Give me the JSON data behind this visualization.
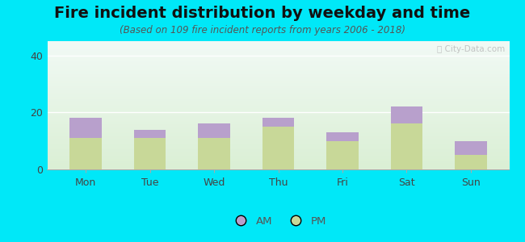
{
  "title": "Fire incident distribution by weekday and time",
  "subtitle": "(Based on 109 fire incident reports from years 2006 - 2018)",
  "categories": [
    "Mon",
    "Tue",
    "Wed",
    "Thu",
    "Fri",
    "Sat",
    "Sun"
  ],
  "pm_values": [
    11,
    11,
    11,
    15,
    10,
    16,
    5
  ],
  "am_values": [
    7,
    3,
    5,
    3,
    3,
    6,
    5
  ],
  "am_color": "#b8a0cc",
  "pm_color": "#c8d898",
  "background_outer": "#00e8f8",
  "ylim": [
    0,
    45
  ],
  "yticks": [
    0,
    20,
    40
  ],
  "bar_width": 0.5,
  "title_fontsize": 14,
  "subtitle_fontsize": 8.5,
  "tick_fontsize": 9,
  "legend_fontsize": 9.5
}
